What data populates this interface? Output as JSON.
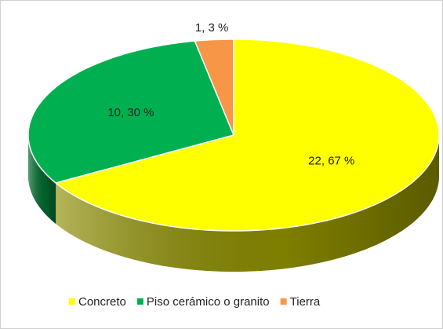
{
  "chart_data": {
    "type": "pie",
    "categories": [
      "Concreto",
      "Piso cerámico o granito",
      "Tierra"
    ],
    "values": [
      22,
      10,
      1
    ],
    "value_labels": [
      "22, 67 %",
      "10, 30 %",
      "1, 3 %"
    ],
    "colors": [
      "#ffff00",
      "#00b050",
      "#f79646"
    ],
    "side_colors": [
      "#8c8c00",
      "#006b2e",
      "#a85f20"
    ],
    "legend": "bottom"
  }
}
